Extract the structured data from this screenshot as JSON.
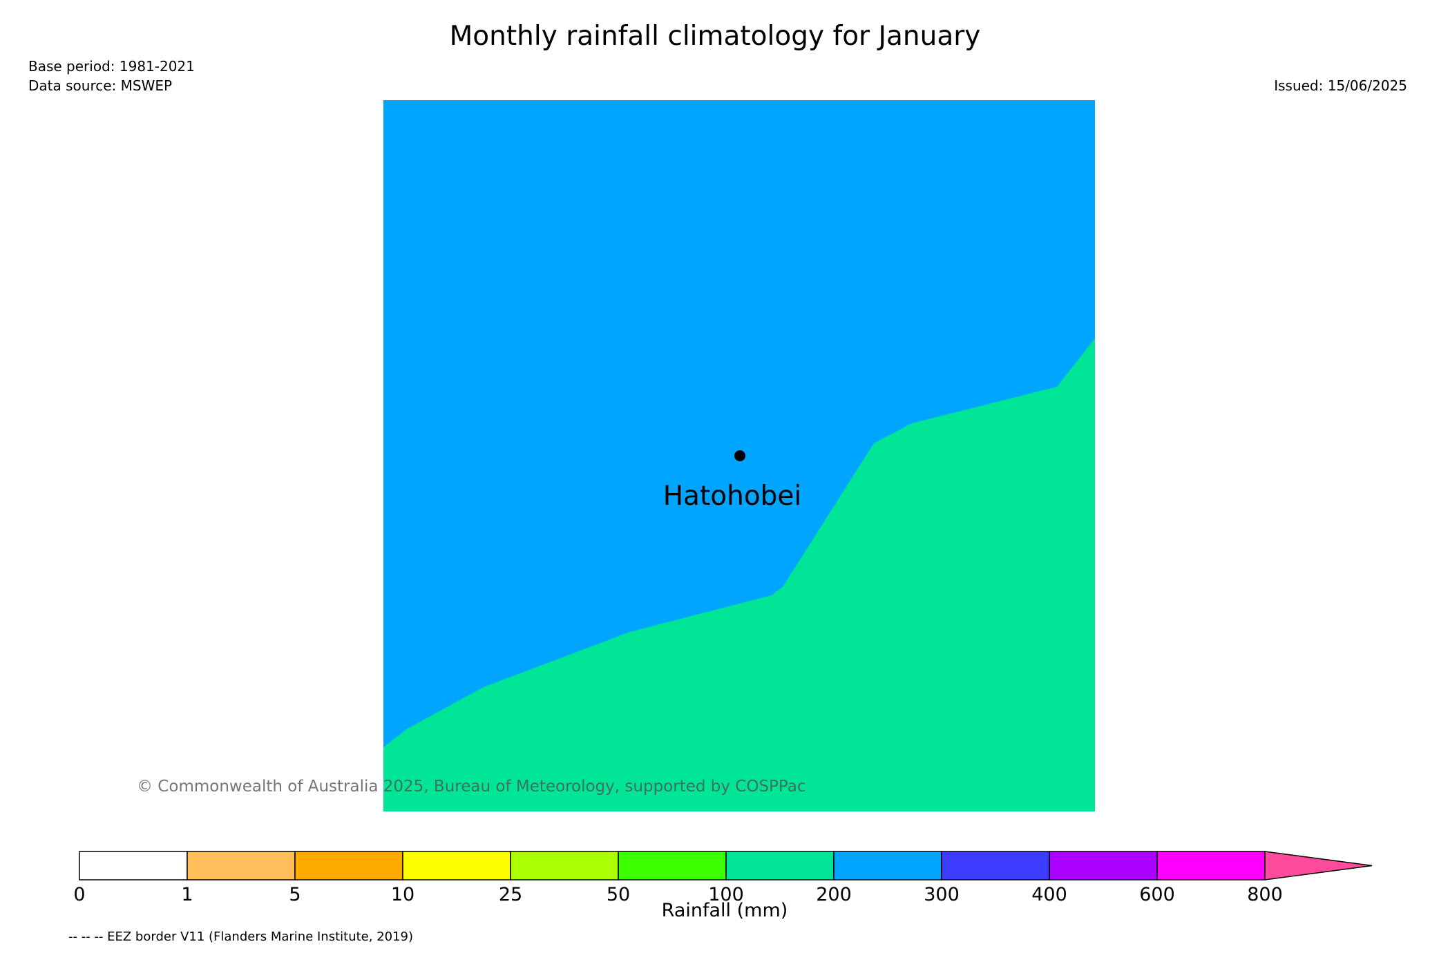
{
  "title": "Monthly rainfall climatology for January",
  "base_period": "Base period: 1981-2021",
  "data_source": "Data source: MSWEP",
  "issued": "Issued: 15/06/2025",
  "map": {
    "location_label": "Hatohobei",
    "region_colors": {
      "200-300": "#00a5ff",
      "100-200": "#00e696"
    }
  },
  "copyright": "© Commonwealth of Australia 2025, Bureau of Meteorology, supported by COSPPac",
  "colorbar": {
    "label": "Rainfall (mm)",
    "ticks": [
      "0",
      "1",
      "5",
      "10",
      "25",
      "50",
      "100",
      "200",
      "300",
      "400",
      "600",
      "800"
    ],
    "colors": [
      "#ffffff",
      "#ffbe5a",
      "#ffaa00",
      "#ffff00",
      "#aaff00",
      "#3cff00",
      "#00e696",
      "#00a5ff",
      "#3c3cff",
      "#aa00ff",
      "#ff00ff"
    ],
    "extend_color": "#ff4b9b"
  },
  "eez_note": "-- -- -- EEZ border V11 (Flanders Marine Institute, 2019)"
}
